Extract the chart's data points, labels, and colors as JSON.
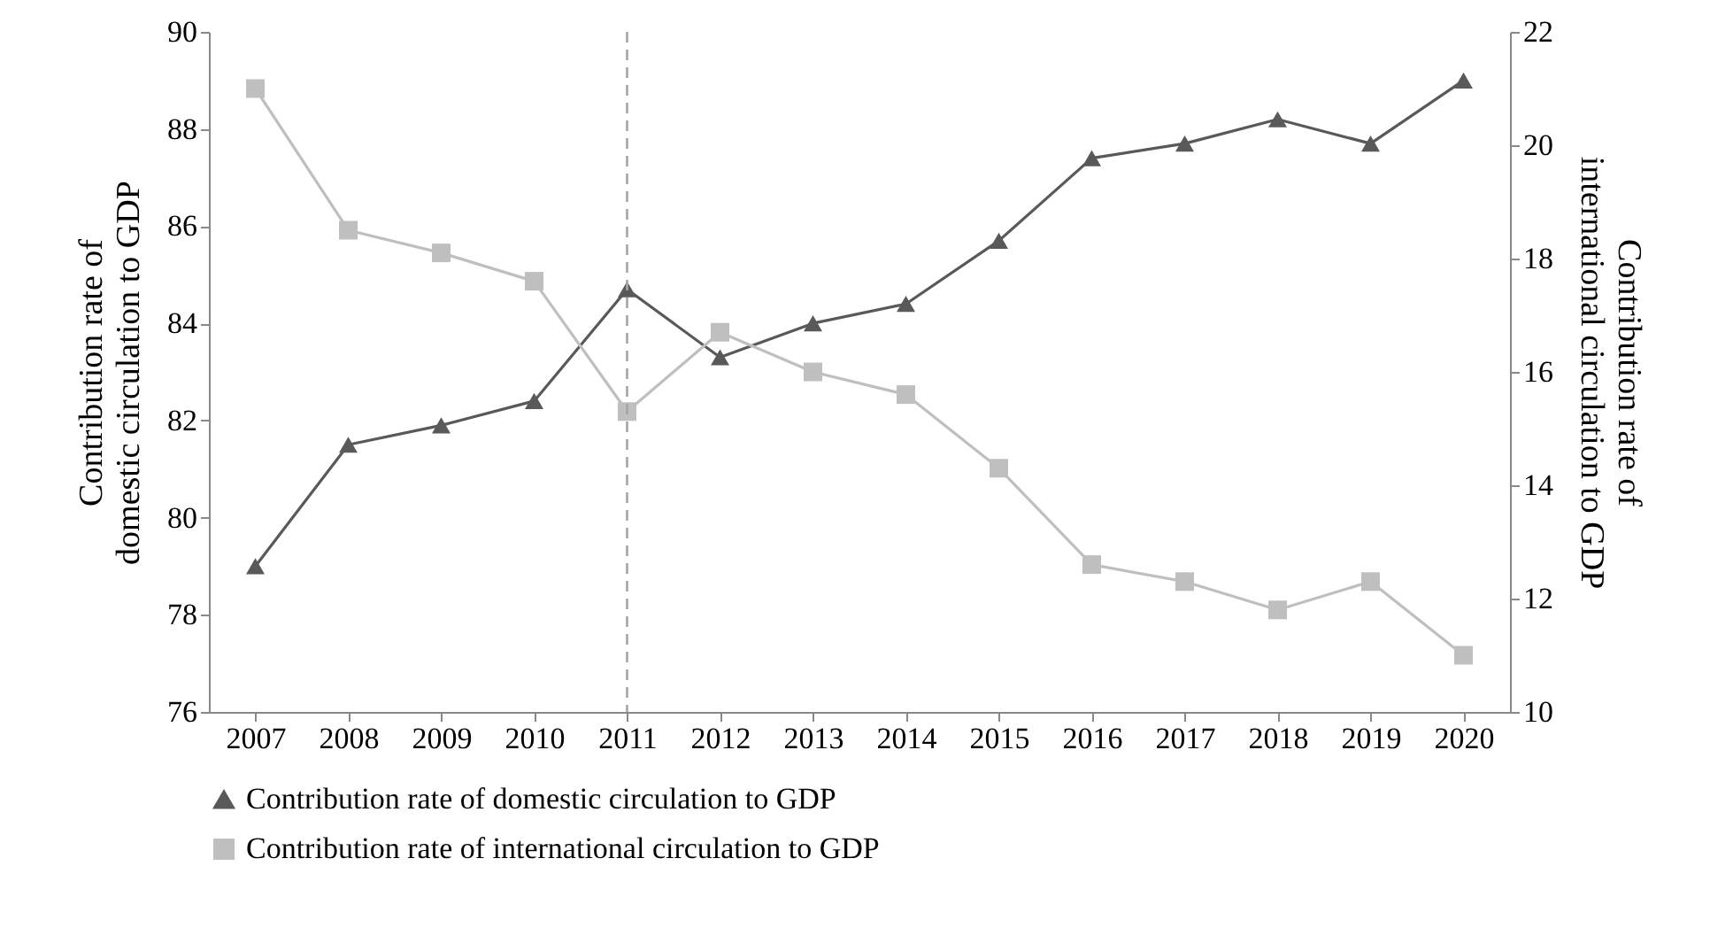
{
  "chart_data": {
    "type": "line",
    "ylabel": "Contribution rate of domestic circulation to GDP",
    "y2label": "Contribution rate of international circulation to GDP",
    "categories": [
      "2007",
      "2008",
      "2009",
      "2010",
      "2011",
      "2012",
      "2013",
      "2014",
      "2015",
      "2016",
      "2017",
      "2018",
      "2019",
      "2020"
    ],
    "series": [
      {
        "name": "Contribution rate of domestic circulation to GDP",
        "color": "#595959",
        "marker": "triangle",
        "values": [
          79.0,
          81.5,
          81.9,
          82.4,
          84.7,
          83.3,
          84.0,
          84.4,
          85.7,
          87.4,
          87.7,
          88.2,
          87.7,
          89.0
        ]
      },
      {
        "name": "Contribution rate of international circulation to GDP",
        "color": "#bfbfbf",
        "marker": "square",
        "axis": "y2",
        "values": [
          21.0,
          18.5,
          18.1,
          17.6,
          15.3,
          16.7,
          16.0,
          15.6,
          14.3,
          12.6,
          12.3,
          11.8,
          12.3,
          11.0
        ]
      }
    ],
    "ylim": [
      76,
      90
    ],
    "yticks": [
      76,
      78,
      80,
      82,
      84,
      86,
      88,
      90
    ],
    "y2lim": [
      10,
      22
    ],
    "y2ticks": [
      10,
      12,
      14,
      16,
      18,
      20,
      22
    ],
    "ref_lines": [
      {
        "axis": "x",
        "value": "2011",
        "color": "#a6a6a6",
        "line_style": "dashed"
      }
    ],
    "legend": "bottom",
    "grid": false
  }
}
